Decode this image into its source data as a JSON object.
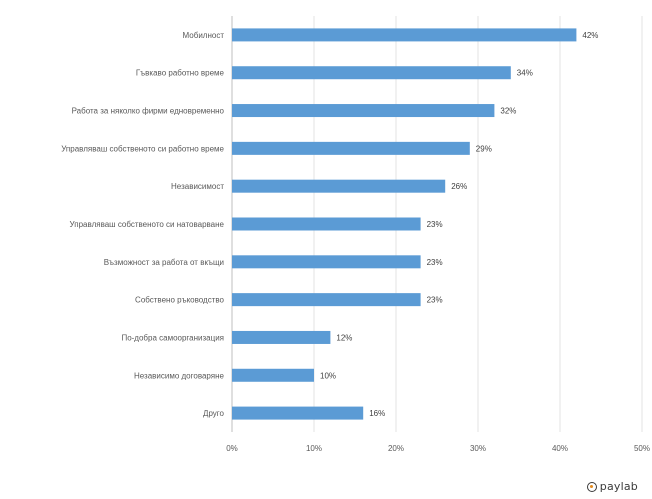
{
  "chart_data": {
    "type": "bar",
    "orientation": "horizontal",
    "title": "",
    "xlabel": "",
    "ylabel": "",
    "categories": [
      "Мобилност",
      "Гъвкаво работно време",
      "Работа за няколко фирми едновременно",
      "Управляваш собственото си работно време",
      "Независимост",
      "Управляваш собственото си натоварване",
      "Възможност за работа от вкъщи",
      "Собствено ръководство",
      "По-добра самоорганизация",
      "Независимо договаряне",
      "Друго"
    ],
    "values": [
      42,
      34,
      32,
      29,
      26,
      23,
      23,
      23,
      12,
      10,
      16
    ],
    "value_labels": [
      "42%",
      "34%",
      "32%",
      "29%",
      "26%",
      "23%",
      "23%",
      "23%",
      "12%",
      "10%",
      "16%"
    ],
    "xlim": [
      0,
      50
    ],
    "xticks": [
      "0%",
      "10%",
      "20%",
      "30%",
      "40%",
      "50%"
    ],
    "grid": true,
    "bar_color": "#5b9bd5"
  },
  "branding": {
    "logo_text": "paylab",
    "logo_icon": "paylab-logo-icon"
  }
}
